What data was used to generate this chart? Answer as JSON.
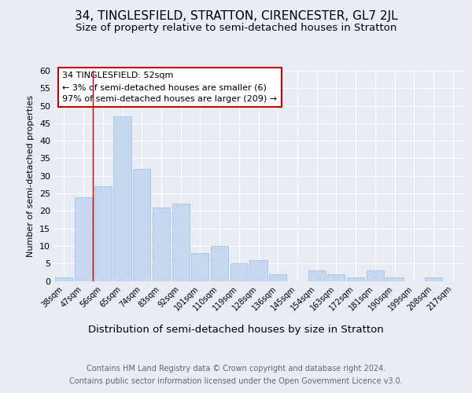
{
  "title": "34, TINGLESFIELD, STRATTON, CIRENCESTER, GL7 2JL",
  "subtitle": "Size of property relative to semi-detached houses in Stratton",
  "xlabel": "Distribution of semi-detached houses by size in Stratton",
  "ylabel": "Number of semi-detached properties",
  "footer_line1": "Contains HM Land Registry data © Crown copyright and database right 2024.",
  "footer_line2": "Contains public sector information licensed under the Open Government Licence v3.0.",
  "categories": [
    "38sqm",
    "47sqm",
    "56sqm",
    "65sqm",
    "74sqm",
    "83sqm",
    "92sqm",
    "101sqm",
    "110sqm",
    "119sqm",
    "128sqm",
    "136sqm",
    "145sqm",
    "154sqm",
    "163sqm",
    "172sqm",
    "181sqm",
    "190sqm",
    "199sqm",
    "208sqm",
    "217sqm"
  ],
  "values": [
    1,
    24,
    27,
    47,
    32,
    21,
    22,
    8,
    10,
    5,
    6,
    2,
    0,
    3,
    2,
    1,
    3,
    1,
    0,
    1,
    0
  ],
  "bar_color": "#c5d8f0",
  "bar_edge_color": "#a0bcd8",
  "annotation_line1": "34 TINGLESFIELD: 52sqm",
  "annotation_line2": "← 3% of semi-detached houses are smaller (6)",
  "annotation_line3": "97% of semi-detached houses are larger (209) →",
  "ylim": [
    0,
    60
  ],
  "yticks": [
    0,
    5,
    10,
    15,
    20,
    25,
    30,
    35,
    40,
    45,
    50,
    55,
    60
  ],
  "background_color": "#e8ecf5",
  "plot_bg_color": "#e8ecf5",
  "title_fontsize": 11,
  "subtitle_fontsize": 9.5,
  "annotation_fontsize": 8,
  "xlabel_fontsize": 9.5,
  "ylabel_fontsize": 8,
  "xtick_fontsize": 7,
  "ytick_fontsize": 8,
  "footer_fontsize": 7,
  "redline_color": "#cc0000",
  "grid_color": "#ffffff",
  "redline_x": 1.5
}
